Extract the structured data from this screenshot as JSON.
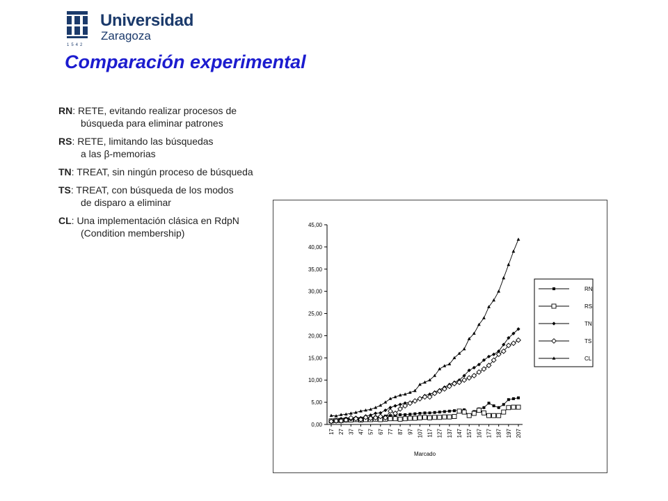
{
  "logo": {
    "name": "Universidad",
    "city": "Zaragoza",
    "year": "1542"
  },
  "title": "Comparación experimental",
  "definitions": [
    {
      "abbr": "RN",
      "line1": ": RETE, evitando realizar procesos de",
      "line2": "búsqueda para eliminar patrones"
    },
    {
      "abbr": "RS",
      "line1": ": RETE, limitando las búsquedas",
      "line2": "a las β-memorias"
    },
    {
      "abbr": "TN",
      "line1": ": TREAT, sin ningún proceso de búsqueda",
      "line2": ""
    },
    {
      "abbr": "TS",
      "line1": ": TREAT, con búsqueda de los modos",
      "line2": "de disparo a eliminar"
    },
    {
      "abbr": "CL",
      "line1": ": Una implementación clásica en RdpN",
      "line2": "(Condition membership)"
    }
  ],
  "chart_data": {
    "type": "line",
    "xlabel": "Marcado",
    "ylabel": "",
    "ylim": [
      0,
      45
    ],
    "yticks": [
      "0,00",
      "5,00",
      "10,00",
      "15,00",
      "20,00",
      "25,00",
      "30,00",
      "35,00",
      "40,00",
      "45,00"
    ],
    "x": [
      17,
      22,
      27,
      32,
      37,
      42,
      47,
      52,
      57,
      62,
      67,
      72,
      77,
      82,
      87,
      92,
      97,
      102,
      107,
      112,
      117,
      122,
      127,
      132,
      137,
      142,
      147,
      152,
      157,
      162,
      167,
      172,
      177,
      182,
      187,
      192,
      197,
      202,
      207
    ],
    "xtick_labels": [
      "17",
      "27",
      "37",
      "47",
      "57",
      "67",
      "77",
      "87",
      "97",
      "107",
      "117",
      "127",
      "137",
      "147",
      "157",
      "167",
      "177",
      "187",
      "197",
      "207"
    ],
    "legend_position": "right",
    "grid": false,
    "series": [
      {
        "name": "RN",
        "marker": "filled-square",
        "values": [
          1.0,
          1.1,
          1.2,
          1.3,
          1.2,
          1.4,
          1.3,
          1.5,
          1.6,
          1.7,
          1.8,
          1.9,
          2.0,
          2.1,
          2.2,
          2.2,
          2.3,
          2.4,
          2.5,
          2.6,
          2.6,
          2.7,
          2.8,
          2.9,
          3.0,
          3.1,
          3.2,
          3.3,
          1.8,
          2.9,
          3.5,
          3.8,
          4.8,
          4.2,
          3.8,
          4.5,
          5.6,
          5.8,
          6.0
        ]
      },
      {
        "name": "RS",
        "marker": "open-square",
        "values": [
          0.8,
          0.9,
          0.9,
          1.0,
          1.0,
          1.1,
          1.0,
          1.1,
          1.1,
          1.2,
          1.1,
          1.2,
          1.3,
          1.3,
          1.2,
          1.3,
          1.4,
          1.4,
          1.5,
          1.6,
          1.5,
          1.6,
          1.6,
          1.7,
          1.7,
          1.8,
          3.0,
          2.8,
          2.0,
          2.5,
          3.2,
          2.6,
          2.0,
          2.0,
          2.0,
          2.8,
          3.8,
          3.9,
          3.9
        ]
      },
      {
        "name": "TN",
        "marker": "filled-diamond",
        "values": [
          0.9,
          1.0,
          1.3,
          1.4,
          1.1,
          1.6,
          1.5,
          1.9,
          2.1,
          2.5,
          2.6,
          3.2,
          3.8,
          4.2,
          4.5,
          4.8,
          5.0,
          5.3,
          5.8,
          6.5,
          6.8,
          7.3,
          7.8,
          8.4,
          9.0,
          9.5,
          10.0,
          11.0,
          12.2,
          12.8,
          13.5,
          14.5,
          15.3,
          15.8,
          16.5,
          18.0,
          19.5,
          20.5,
          21.5
        ]
      },
      {
        "name": "TS",
        "marker": "open-diamond",
        "values": [
          0.7,
          0.8,
          0.8,
          1.0,
          1.5,
          1.3,
          1.1,
          1.6,
          1.4,
          1.5,
          1.8,
          1.5,
          3.0,
          2.5,
          3.5,
          4.2,
          4.8,
          5.3,
          5.8,
          6.2,
          6.2,
          7.0,
          7.5,
          8.0,
          8.6,
          9.2,
          9.5,
          10.0,
          10.5,
          11.0,
          11.8,
          12.5,
          13.3,
          14.5,
          15.8,
          16.5,
          17.8,
          18.3,
          19.0
        ]
      },
      {
        "name": "CL",
        "marker": "filled-triangle",
        "values": [
          2.0,
          1.9,
          2.2,
          2.3,
          2.5,
          2.7,
          3.0,
          3.2,
          3.4,
          3.8,
          4.3,
          5.0,
          5.8,
          6.2,
          6.6,
          6.8,
          7.2,
          7.6,
          9.0,
          9.5,
          10.0,
          11.0,
          12.5,
          13.2,
          13.6,
          15.0,
          16.0,
          17.0,
          19.3,
          20.5,
          22.5,
          24.0,
          26.5,
          28.0,
          30.0,
          33.0,
          36.0,
          39.0,
          41.7
        ]
      }
    ]
  }
}
